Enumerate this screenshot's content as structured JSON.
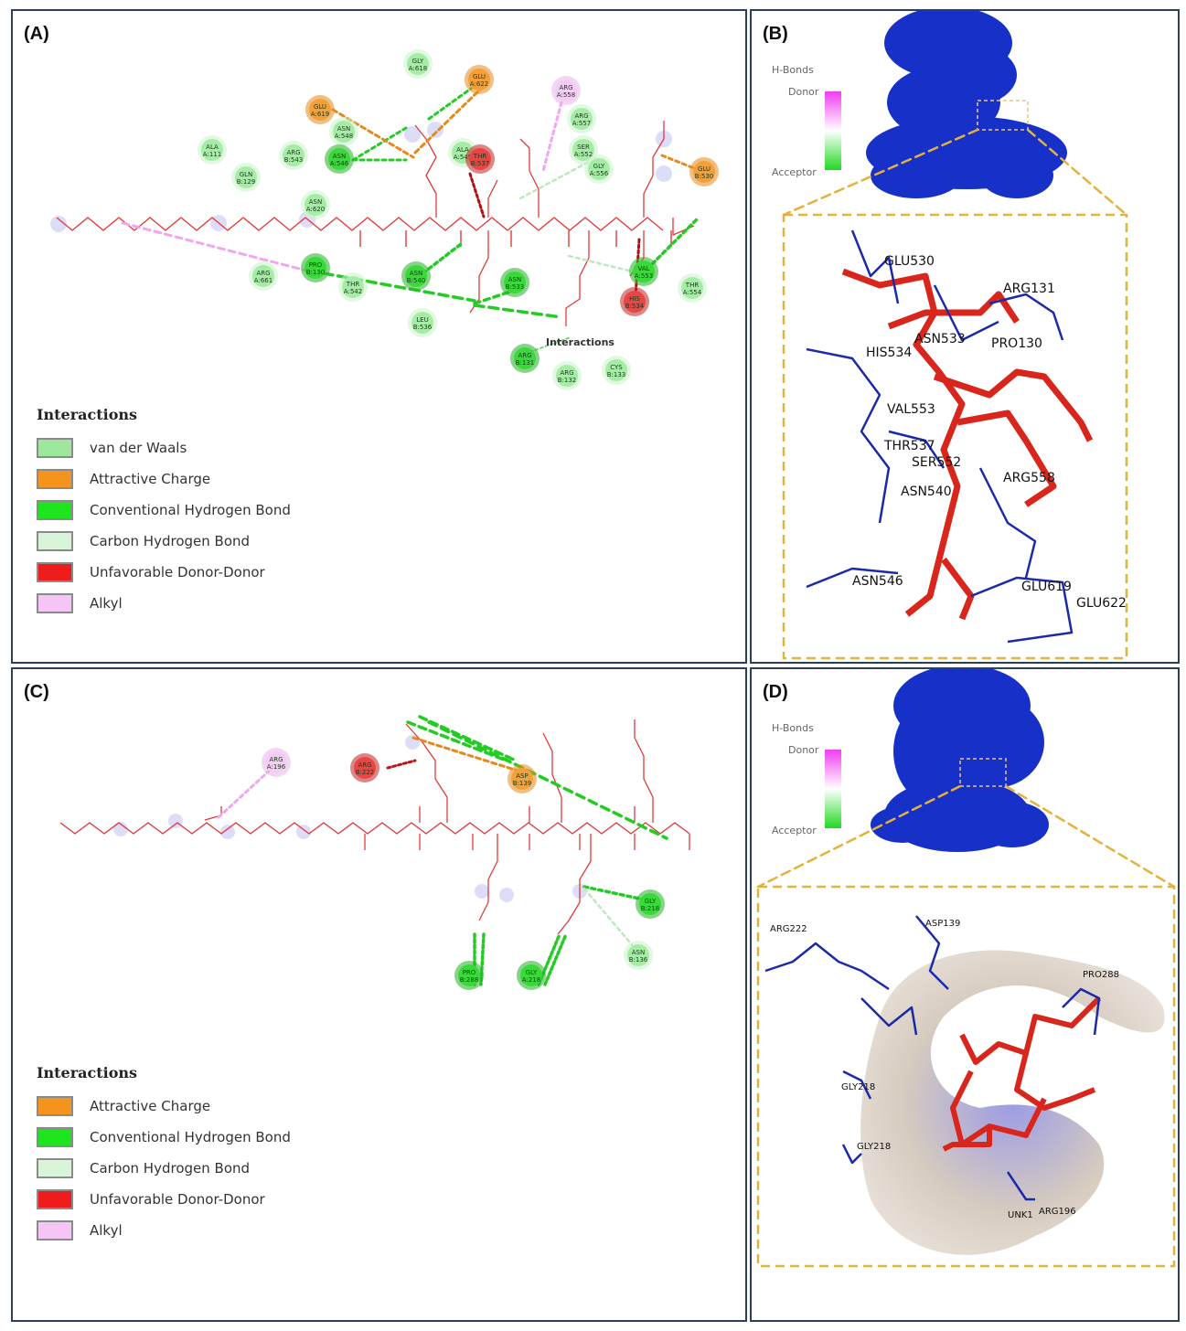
{
  "panels": {
    "A": {
      "label": "(A)",
      "legend_title": "Interactions",
      "legend": [
        {
          "label": "van der Waals",
          "color": "#9ee89e"
        },
        {
          "label": "Attractive Charge",
          "color": "#f5941c"
        },
        {
          "label": "Conventional Hydrogen Bond",
          "color": "#1ee51e"
        },
        {
          "label": "Carbon Hydrogen Bond",
          "color": "#d9f5d9"
        },
        {
          "label": "Unfavorable Donor-Donor",
          "color": "#ee1c1c"
        },
        {
          "label": "Alkyl",
          "color": "#f5c5f5"
        }
      ],
      "floating_text": "Interactions",
      "residues": [
        {
          "t1": "GLY",
          "t2": "A:618",
          "type": "vdw"
        },
        {
          "t1": "GLU",
          "t2": "A:622",
          "type": "charge"
        },
        {
          "t1": "GLU",
          "t2": "A:619",
          "type": "charge"
        },
        {
          "t1": "ASN",
          "t2": "A:548",
          "type": "vdw"
        },
        {
          "t1": "ASN",
          "t2": "A:546",
          "type": "hbond"
        },
        {
          "t1": "ALA",
          "t2": "A:111",
          "type": "vdw"
        },
        {
          "t1": "ARG",
          "t2": "B:543",
          "type": "vdw"
        },
        {
          "t1": "GLN",
          "t2": "B:129",
          "type": "vdw"
        },
        {
          "t1": "ASN",
          "t2": "A:620",
          "type": "vdw"
        },
        {
          "t1": "ALA",
          "t2": "A:549",
          "type": "vdw"
        },
        {
          "t1": "THR",
          "t2": "B:537",
          "type": "unfav"
        },
        {
          "t1": "ARG",
          "t2": "A:558",
          "type": "alkyl"
        },
        {
          "t1": "ARG",
          "t2": "A:557",
          "type": "vdw"
        },
        {
          "t1": "SER",
          "t2": "A:552",
          "type": "vdw"
        },
        {
          "t1": "GLY",
          "t2": "A:556",
          "type": "vdw"
        },
        {
          "t1": "GLU",
          "t2": "B:530",
          "type": "charge"
        },
        {
          "t1": "ARG",
          "t2": "A:661",
          "type": "vdw"
        },
        {
          "t1": "PRO",
          "t2": "B:130",
          "type": "hbond"
        },
        {
          "t1": "THR",
          "t2": "A:542",
          "type": "vdw"
        },
        {
          "t1": "ASN",
          "t2": "B:540",
          "type": "hbond"
        },
        {
          "t1": "ASN",
          "t2": "B:533",
          "type": "hbond"
        },
        {
          "t1": "LEU",
          "t2": "B:536",
          "type": "vdw"
        },
        {
          "t1": "VAL",
          "t2": "A:553",
          "type": "hbond"
        },
        {
          "t1": "HIS",
          "t2": "B:534",
          "type": "unfav"
        },
        {
          "t1": "THR",
          "t2": "A:554",
          "type": "vdw"
        },
        {
          "t1": "ARG",
          "t2": "B:131",
          "type": "hbond"
        },
        {
          "t1": "ARG",
          "t2": "B:132",
          "type": "vdw"
        },
        {
          "t1": "CYS",
          "t2": "B:133",
          "type": "vdw"
        }
      ]
    },
    "B": {
      "label": "(B)",
      "hbonds_title": "H-Bonds",
      "donor": "Donor",
      "acceptor": "Acceptor",
      "residue_labels": [
        "GLU530",
        "ARG131",
        "ASN533",
        "PRO130",
        "HIS534",
        "VAL553",
        "THR537",
        "SER552",
        "ARG558",
        "ASN540",
        "ASN546",
        "GLU619",
        "GLU622"
      ]
    },
    "C": {
      "label": "(C)",
      "legend_title": "Interactions",
      "legend": [
        {
          "label": "Attractive Charge",
          "color": "#f5941c"
        },
        {
          "label": "Conventional Hydrogen Bond",
          "color": "#1ee51e"
        },
        {
          "label": "Carbon Hydrogen Bond",
          "color": "#d9f5d9"
        },
        {
          "label": "Unfavorable Donor-Donor",
          "color": "#ee1c1c"
        },
        {
          "label": "Alkyl",
          "color": "#f5c5f5"
        }
      ],
      "residues": [
        {
          "t1": "ARG",
          "t2": "A:196",
          "type": "alkyl"
        },
        {
          "t1": "ARG",
          "t2": "B:222",
          "type": "unfav"
        },
        {
          "t1": "ASP",
          "t2": "B:139",
          "type": "charge"
        },
        {
          "t1": "GLY",
          "t2": "B:218",
          "type": "hbond"
        },
        {
          "t1": "ASN",
          "t2": "B:136",
          "type": "vdw"
        },
        {
          "t1": "PRO",
          "t2": "B:288",
          "type": "hbond"
        },
        {
          "t1": "GLY",
          "t2": "A:218",
          "type": "hbond"
        }
      ]
    },
    "D": {
      "label": "(D)",
      "hbonds_title": "H-Bonds",
      "donor": "Donor",
      "acceptor": "Acceptor",
      "residue_labels": [
        "ARG222",
        "ASP139",
        "PRO288",
        "GLY218",
        "GLY218",
        "UNK1",
        "ARG196"
      ]
    }
  }
}
